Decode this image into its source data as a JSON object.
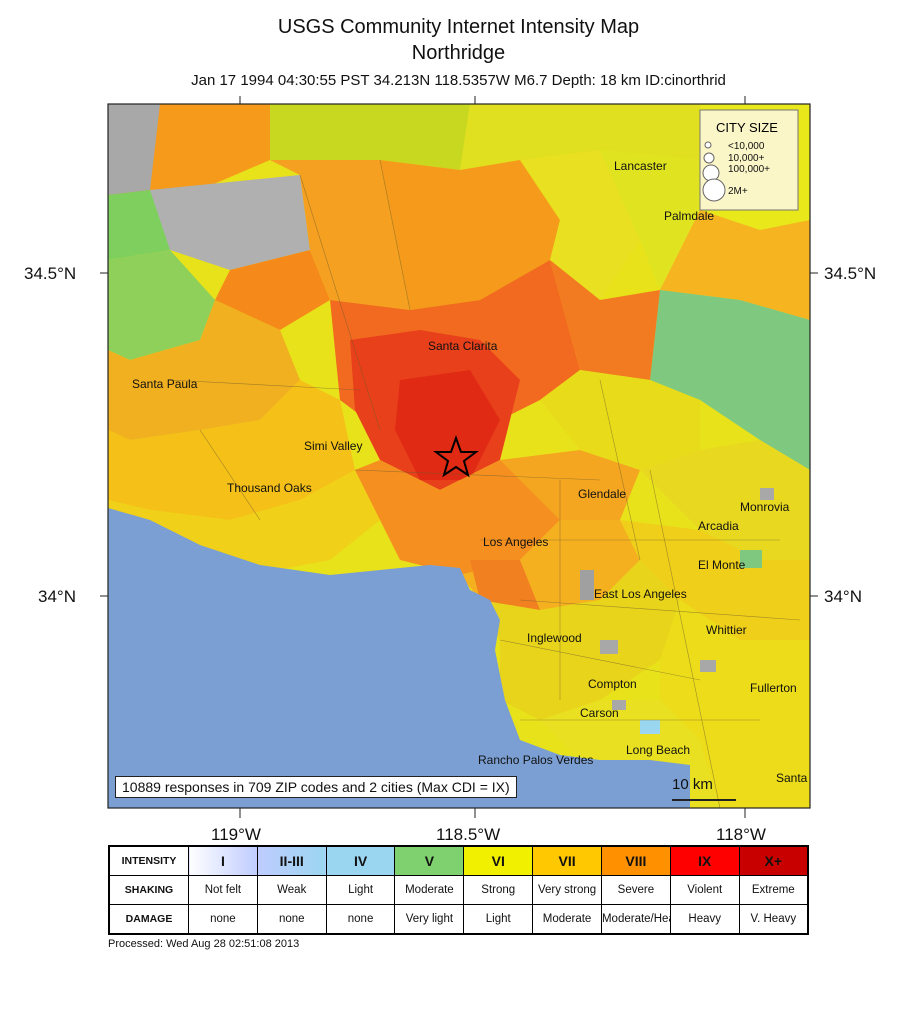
{
  "header": {
    "title": "USGS Community Internet Intensity Map",
    "subtitle": "Northridge",
    "event_info": "Jan 17 1994 04:30:55 PST 34.213N 118.5357W M6.7 Depth: 18 km ID:cinorthrid"
  },
  "axes": {
    "lat_labels": [
      "34.5°N",
      "34°N"
    ],
    "lon_labels": [
      "119°W",
      "118.5°W",
      "118°W"
    ]
  },
  "cities": [
    "Lancaster",
    "Palmdale",
    "Santa Clarita",
    "Santa Paula",
    "Simi Valley",
    "Thousand Oaks",
    "Glendale",
    "Monrovia",
    "Arcadia",
    "Los Angeles",
    "El Monte",
    "East Los Angeles",
    "Whittier",
    "Inglewood",
    "Fullerton",
    "Compton",
    "Carson",
    "Long Beach",
    "Rancho Palos Verdes",
    "Santa"
  ],
  "city_size_legend": {
    "title": "CITY SIZE",
    "items": [
      "<10,000",
      "10,000+",
      "100,000+",
      "2M+"
    ]
  },
  "summary": "10889 responses in 709 ZIP codes and 2 cities (Max CDI = IX)",
  "scale_bar": {
    "label": "10 km"
  },
  "legend": {
    "row_labels": {
      "intensity": "INTENSITY",
      "shaking": "SHAKING",
      "damage": "DAMAGE"
    },
    "columns": [
      {
        "intensity": "I",
        "shaking": "Not felt",
        "damage": "none",
        "color": "#ffffff"
      },
      {
        "intensity": "II-III",
        "shaking": "Weak",
        "damage": "none",
        "color": "#bfccff"
      },
      {
        "intensity": "IV",
        "shaking": "Light",
        "damage": "none",
        "color": "#9bd6f0"
      },
      {
        "intensity": "V",
        "shaking": "Moderate",
        "damage": "Very light",
        "color": "#7fd06e"
      },
      {
        "intensity": "VI",
        "shaking": "Strong",
        "damage": "Light",
        "color": "#f0f000"
      },
      {
        "intensity": "VII",
        "shaking": "Very strong",
        "damage": "Moderate",
        "color": "#ffc800"
      },
      {
        "intensity": "VIII",
        "shaking": "Severe",
        "damage": "Moderate/Heavy",
        "color": "#ff9100"
      },
      {
        "intensity": "IX",
        "shaking": "Violent",
        "damage": "Heavy",
        "color": "#ff0000"
      },
      {
        "intensity": "X+",
        "shaking": "Extreme",
        "damage": "V. Heavy",
        "color": "#c80000"
      }
    ]
  },
  "processed": "Processed: Wed Aug 28 02:51:08 2013"
}
